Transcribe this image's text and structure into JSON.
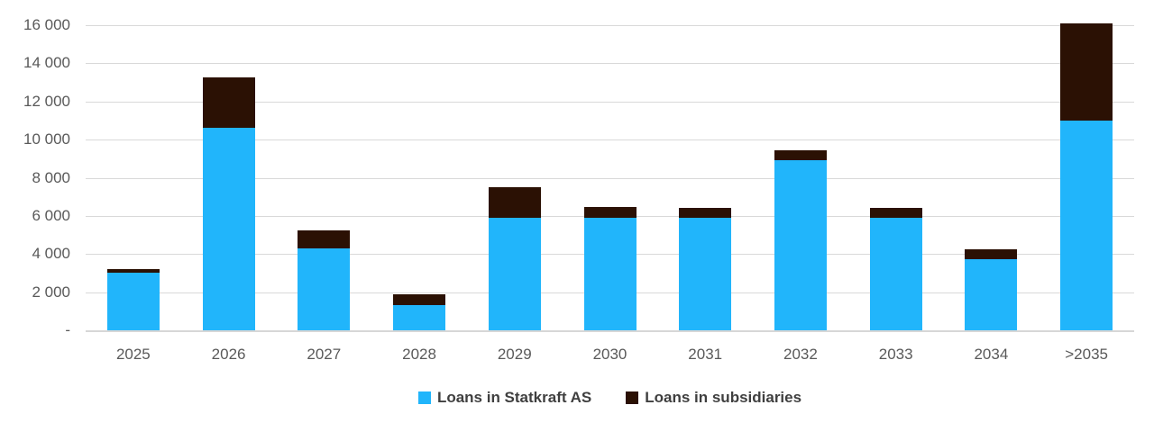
{
  "chart_data": {
    "type": "bar",
    "stacked": true,
    "title": "",
    "xlabel": "",
    "ylabel": "",
    "categories": [
      "2025",
      "2026",
      "2027",
      "2028",
      "2029",
      "2030",
      "2031",
      "2032",
      "2033",
      "2034",
      ">2035"
    ],
    "series": [
      {
        "name": "Loans in Statkraft AS",
        "color": "#21B5FB",
        "values": [
          3000,
          10600,
          4300,
          1300,
          5900,
          5900,
          5900,
          8900,
          5900,
          3750,
          11000
        ]
      },
      {
        "name": "Loans in subsidiaries",
        "color": "#2B1104",
        "values": [
          200,
          2650,
          950,
          600,
          1600,
          550,
          500,
          550,
          500,
          500,
          5100
        ]
      }
    ],
    "ylim": [
      0,
      16000
    ],
    "ytick_step": 2000,
    "ytick_labels": [
      "-",
      "2 000",
      "4 000",
      "6 000",
      "8 000",
      "10 000",
      "12 000",
      "14 000",
      "16 000"
    ],
    "grid": true,
    "legend_position": "bottom"
  },
  "style": {
    "gridline_color": "#d9d9d9",
    "axis_line_color": "#d7d7d7",
    "tick_label_color": "#595959",
    "legend_text_color": "#3f3f3f",
    "background": "#ffffff"
  }
}
